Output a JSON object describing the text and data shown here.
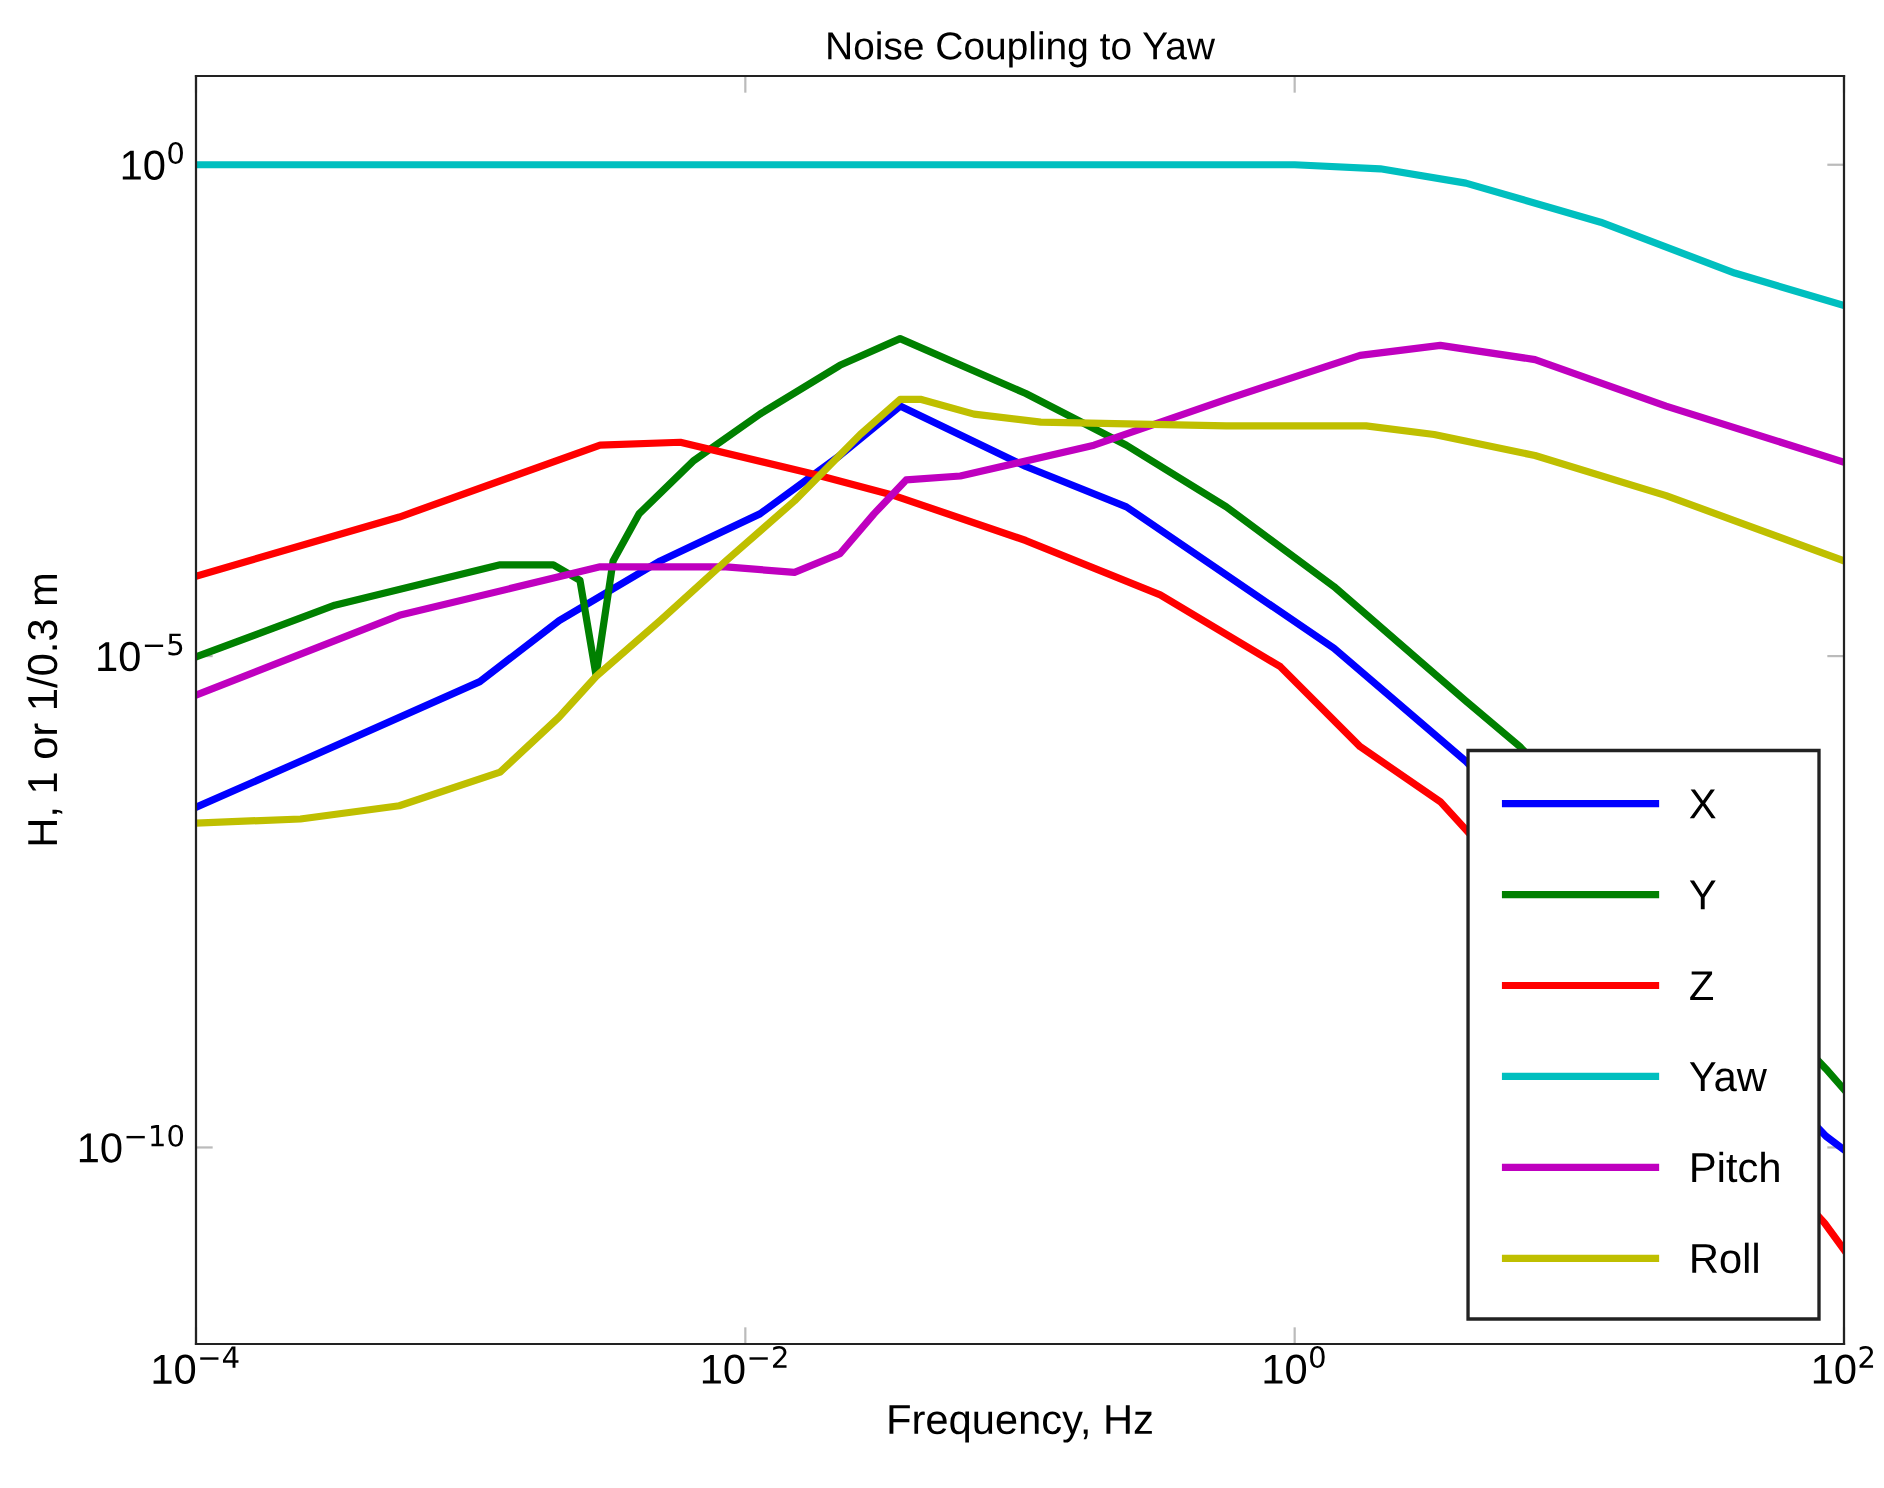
{
  "chart_data": {
    "type": "line",
    "title": "Noise Coupling to Yaw",
    "xlabel": "Frequency, Hz",
    "ylabel": "H, 1 or 1/0.3 m",
    "log": "xy",
    "xlim": [
      0.0001,
      100
    ],
    "xticks": [
      {
        "value": 0.0001,
        "label": "10$^{−4}$"
      },
      {
        "value": 0.01,
        "label": "10$^{−2}$"
      },
      {
        "value": 1,
        "label": "10$^{0}$"
      },
      {
        "value": 100,
        "label": "10$^{2}$"
      }
    ],
    "ylim": [
      1e-12,
      8
    ],
    "yticks": [
      {
        "value": 1e-10,
        "label": "10$^{−10}$"
      },
      {
        "value": 1e-05,
        "label": "10$^{−5}$"
      },
      {
        "value": 1,
        "label": "10$^{0}$"
      }
    ],
    "grid": false,
    "legend": "bottom right",
    "marker": "none",
    "line_style": "solid",
    "series": [
      {
        "name": "X",
        "color": "#0000ff",
        "x": [
          0.0001,
          0.00024,
          0.00108,
          0.0021,
          0.0049,
          0.0113,
          0.0221,
          0.0366,
          0.105,
          0.244,
          0.564,
          1.39,
          4.2,
          86,
          100
        ],
        "values": [
          2.9e-07,
          8.5e-07,
          5.5e-06,
          2.3e-05,
          9.3e-05,
          0.00028,
          0.0011,
          0.0035,
          0.00085,
          0.00033,
          6.7e-05,
          1.2e-05,
          8.5e-07,
          1.3e-10,
          9.5e-11
        ]
      },
      {
        "name": "Y",
        "color": "#008000",
        "x": [
          0.0001,
          0.00032,
          0.00128,
          0.002,
          0.0025,
          0.00286,
          0.0033,
          0.0041,
          0.0065,
          0.0113,
          0.0221,
          0.0366,
          0.105,
          0.244,
          0.564,
          1.39,
          4.2,
          6.6,
          86,
          100
        ],
        "values": [
          9.8e-06,
          3.3e-05,
          8.5e-05,
          8.5e-05,
          5.9e-05,
          6.4e-06,
          9.3e-05,
          0.00028,
          0.00098,
          0.0029,
          0.0091,
          0.017,
          0.0047,
          0.0014,
          0.00033,
          5.1e-05,
          3.5e-06,
          1.2e-06,
          6.3e-10,
          3.9e-10
        ]
      },
      {
        "name": "Z",
        "color": "#ff0000",
        "x": [
          0.0001,
          0.00055,
          0.00296,
          0.0058,
          0.0178,
          0.0348,
          0.105,
          0.324,
          0.887,
          1.73,
          3.39,
          85,
          100
        ],
        "values": [
          6.5e-05,
          0.00026,
          0.0014,
          0.0015,
          0.00071,
          0.00043,
          0.00015,
          4.2e-05,
          7.8e-06,
          1.2e-06,
          3.3e-07,
          1.7e-11,
          9.1e-12
        ]
      },
      {
        "name": "Yaw",
        "color": "#00bfbf",
        "x": [
          0.0001,
          1,
          2.05,
          4.2,
          13,
          40,
          100
        ],
        "values": [
          1,
          1,
          0.91,
          0.65,
          0.26,
          0.079,
          0.037
        ]
      },
      {
        "name": "Pitch",
        "color": "#bf00bf",
        "x": [
          0.0001,
          0.00055,
          0.00296,
          0.0085,
          0.0151,
          0.0221,
          0.0294,
          0.0385,
          0.0606,
          0.186,
          0.564,
          1.73,
          3.39,
          7.5,
          22.5,
          100
        ],
        "values": [
          4e-06,
          2.6e-05,
          8.1e-05,
          8.1e-05,
          7.1e-05,
          0.00011,
          0.00028,
          0.00062,
          0.00068,
          0.0014,
          0.0041,
          0.0115,
          0.0145,
          0.0104,
          0.0035,
          0.00094
        ]
      },
      {
        "name": "Roll",
        "color": "#bfbf00",
        "x": [
          0.0001,
          0.00024,
          0.00055,
          0.00128,
          0.0021,
          0.00286,
          0.0049,
          0.0085,
          0.0151,
          0.0262,
          0.0366,
          0.0434,
          0.068,
          0.119,
          0.564,
          1.82,
          3.22,
          7.5,
          22.5,
          100
        ],
        "values": [
          2e-07,
          2.2e-07,
          3e-07,
          6.6e-07,
          2.4e-06,
          6.2e-06,
          2.3e-05,
          9.3e-05,
          0.00038,
          0.0018,
          0.0041,
          0.0041,
          0.0029,
          0.0024,
          0.0022,
          0.0022,
          0.0018,
          0.0011,
          0.00043,
          9.3e-05
        ]
      }
    ]
  }
}
